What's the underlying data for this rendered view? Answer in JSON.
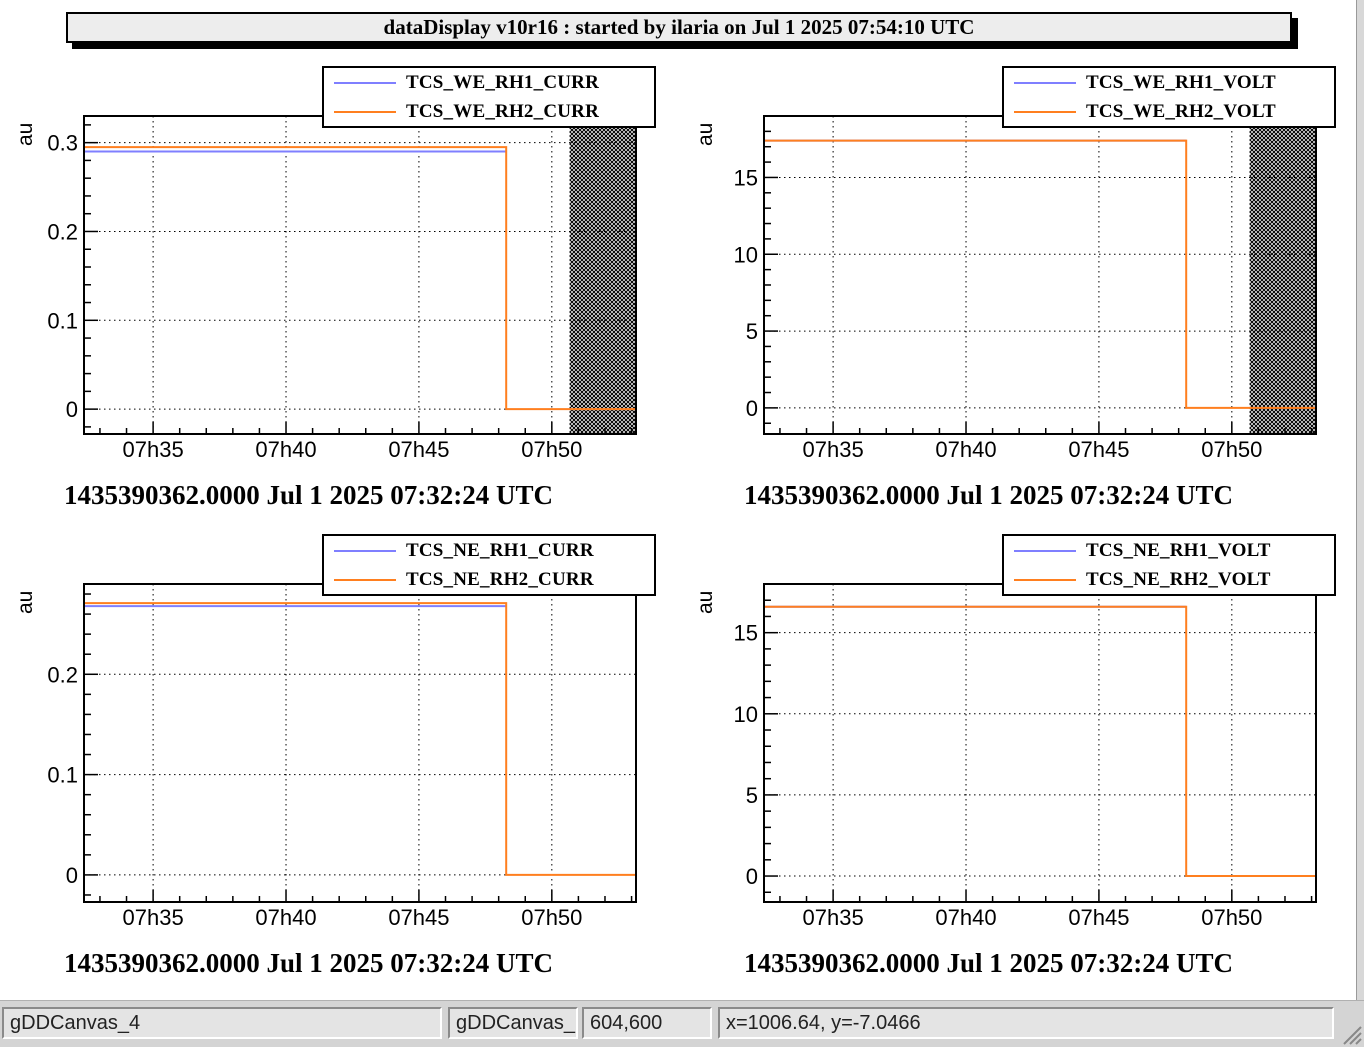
{
  "title": "dataDisplay v10r16 : started by ilaria on Jul  1 2025 07:54:10 UTC",
  "colors": {
    "series1": "#7f7fff",
    "series2": "#ff7f1f",
    "hatch": "#000000"
  },
  "status_bar": {
    "canvas_name": "gDDCanvas_4",
    "object_name": "gDDCanvas_",
    "size": "604,600",
    "coords": "x=1006.64, y=-7.0466"
  },
  "chart_data": [
    {
      "type": "line",
      "ylabel": "au",
      "xlabel": "1435390362.0000 Jul 1 2025 07:32:24 UTC",
      "x_ticks": [
        "07h35",
        "07h40",
        "07h45",
        "07h50"
      ],
      "xlim": [
        "07:32:24",
        "07:53:10"
      ],
      "ylim": [
        -0.028,
        0.33
      ],
      "y_ticks": [
        0,
        0.1,
        0.2,
        0.3
      ],
      "y_tick_labels": [
        "0",
        "0.1",
        "0.2",
        "0.3"
      ],
      "grid": true,
      "legend_position": "top-right",
      "shaded_region": [
        "07:50:40",
        "07:53:10"
      ],
      "series": [
        {
          "name": "TCS_WE_RH1_CURR",
          "points": [
            [
              "07:32:24",
              0.29
            ],
            [
              "07:48:17",
              0.29
            ]
          ]
        },
        {
          "name": "TCS_WE_RH2_CURR",
          "points": [
            [
              "07:32:24",
              0.0
            ],
            [
              "07:32:24",
              0.295
            ],
            [
              "07:48:17",
              0.295
            ],
            [
              "07:48:17",
              0.0
            ],
            [
              "07:53:10",
              0.0
            ]
          ]
        }
      ]
    },
    {
      "type": "line",
      "ylabel": "au",
      "xlabel": "1435390362.0000 Jul 1 2025 07:32:24 UTC",
      "x_ticks": [
        "07h35",
        "07h40",
        "07h45",
        "07h50"
      ],
      "xlim": [
        "07:32:24",
        "07:53:10"
      ],
      "ylim": [
        -1.7,
        19.0
      ],
      "y_ticks": [
        0,
        5,
        10,
        15
      ],
      "y_tick_labels": [
        "0",
        "5",
        "10",
        "15"
      ],
      "grid": true,
      "legend_position": "top-right",
      "shaded_region": [
        "07:50:40",
        "07:53:10"
      ],
      "series": [
        {
          "name": "TCS_WE_RH1_VOLT",
          "points": [
            [
              "07:32:24",
              17.4
            ],
            [
              "07:48:17",
              17.4
            ]
          ]
        },
        {
          "name": "TCS_WE_RH2_VOLT",
          "points": [
            [
              "07:32:24",
              0.0
            ],
            [
              "07:32:24",
              17.4
            ],
            [
              "07:48:17",
              17.4
            ],
            [
              "07:48:17",
              0.0
            ],
            [
              "07:53:10",
              0.0
            ]
          ]
        }
      ]
    },
    {
      "type": "line",
      "ylabel": "au",
      "xlabel": "1435390362.0000 Jul 1 2025 07:32:24 UTC",
      "x_ticks": [
        "07h35",
        "07h40",
        "07h45",
        "07h50"
      ],
      "xlim": [
        "07:32:24",
        "07:53:10"
      ],
      "ylim": [
        -0.027,
        0.29
      ],
      "y_ticks": [
        0,
        0.1,
        0.2
      ],
      "y_tick_labels": [
        "0",
        "0.1",
        "0.2"
      ],
      "grid": true,
      "legend_position": "top-right",
      "series": [
        {
          "name": "TCS_NE_RH1_CURR",
          "points": [
            [
              "07:32:24",
              0.268
            ],
            [
              "07:48:17",
              0.268
            ]
          ]
        },
        {
          "name": "TCS_NE_RH2_CURR",
          "points": [
            [
              "07:32:24",
              0.0
            ],
            [
              "07:32:24",
              0.271
            ],
            [
              "07:48:17",
              0.271
            ],
            [
              "07:48:17",
              0.0
            ],
            [
              "07:53:10",
              0.0
            ]
          ]
        }
      ]
    },
    {
      "type": "line",
      "ylabel": "au",
      "xlabel": "1435390362.0000 Jul 1 2025 07:32:24 UTC",
      "x_ticks": [
        "07h35",
        "07h40",
        "07h45",
        "07h50"
      ],
      "xlim": [
        "07:32:24",
        "07:53:10"
      ],
      "ylim": [
        -1.6,
        18.0
      ],
      "y_ticks": [
        0,
        5,
        10,
        15
      ],
      "y_tick_labels": [
        "0",
        "5",
        "10",
        "15"
      ],
      "grid": true,
      "legend_position": "top-right",
      "series": [
        {
          "name": "TCS_NE_RH1_VOLT",
          "points": [
            [
              "07:32:24",
              16.6
            ],
            [
              "07:48:17",
              16.6
            ]
          ]
        },
        {
          "name": "TCS_NE_RH2_VOLT",
          "points": [
            [
              "07:32:24",
              0.0
            ],
            [
              "07:32:24",
              16.6
            ],
            [
              "07:48:17",
              16.6
            ],
            [
              "07:48:17",
              0.0
            ],
            [
              "07:53:10",
              0.0
            ]
          ]
        }
      ]
    }
  ]
}
